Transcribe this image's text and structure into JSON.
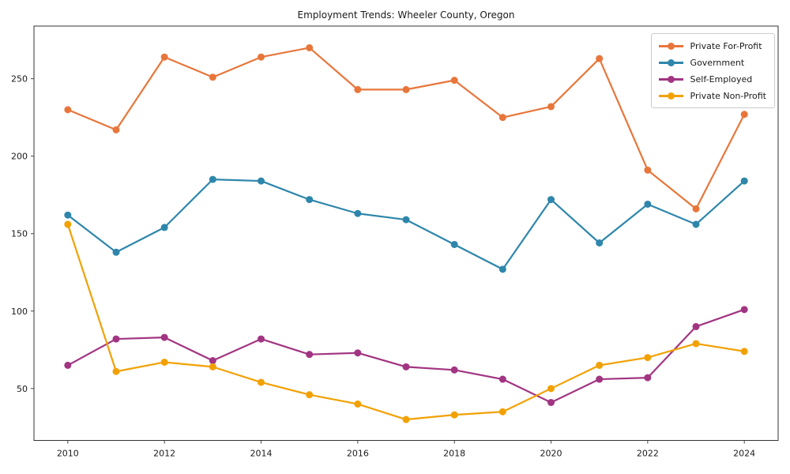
{
  "figure": {
    "title": "Employment Trends: Wheeler County, Oregon"
  },
  "chart_data": {
    "type": "line",
    "title": "Employment Trends: Wheeler County, Oregon",
    "xlabel": "",
    "ylabel": "",
    "x": [
      2010,
      2011,
      2012,
      2013,
      2014,
      2015,
      2016,
      2017,
      2018,
      2019,
      2020,
      2021,
      2022,
      2023,
      2024
    ],
    "series": [
      {
        "name": "Private For-Profit",
        "color": "#E8763B",
        "values": [
          230,
          217,
          264,
          251,
          264,
          270,
          243,
          243,
          249,
          225,
          232,
          263,
          191,
          166,
          227
        ]
      },
      {
        "name": "Government",
        "color": "#2E86AB",
        "values": [
          162,
          138,
          154,
          185,
          184,
          172,
          163,
          159,
          143,
          127,
          172,
          144,
          169,
          156,
          184
        ]
      },
      {
        "name": "Self-Employed",
        "color": "#A23582",
        "values": [
          65,
          82,
          83,
          68,
          82,
          72,
          73,
          64,
          62,
          56,
          41,
          56,
          57,
          90,
          101
        ]
      },
      {
        "name": "Private Non-Profit",
        "color": "#F2A104",
        "values": [
          156,
          61,
          67,
          64,
          54,
          46,
          40,
          30,
          33,
          35,
          50,
          65,
          70,
          79,
          74
        ]
      }
    ],
    "xticks": [
      2010,
      2012,
      2014,
      2016,
      2018,
      2020,
      2022,
      2024
    ],
    "yticks": [
      50,
      100,
      150,
      200,
      250
    ],
    "xlim": [
      2009.3,
      2024.7
    ],
    "ylim": [
      16.5,
      284
    ],
    "grid": false,
    "legend_position": "upper right",
    "marker": "circle",
    "line_width": 2.2,
    "marker_radius": 4.5
  }
}
